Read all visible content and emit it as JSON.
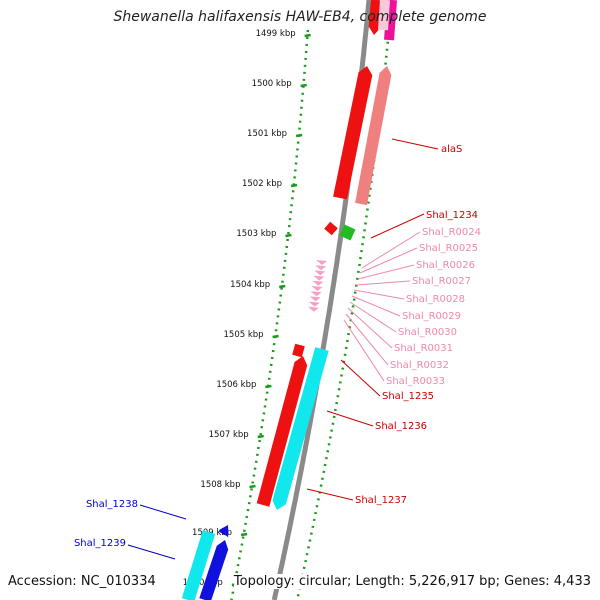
{
  "title": "Shewanella halifaxensis HAW-EB4, complete genome",
  "footer": {
    "accession": "Accession: NC_010334",
    "summary": "Topology: circular; Length: 5,226,917 bp; Genes: 4,433"
  },
  "scale_labels": [
    "1499 kbp",
    "1500 kbp",
    "1501 kbp",
    "1502 kbp",
    "1503 kbp",
    "1504 kbp",
    "1505 kbp",
    "1506 kbp",
    "1507 kbp",
    "1508 kbp",
    "1509 kbp",
    "1510 kbp"
  ],
  "colors": {
    "backbone": "#8a8a8a",
    "scale": "#1a9a1a",
    "cds": "#ee1111",
    "rrna": "#f08080",
    "trna": "#f4a0c8",
    "misc": "#22bb22",
    "cyan": "#11e8ee",
    "blue": "#1111dd",
    "magenta": "#ee1199"
  },
  "gene_labels": [
    {
      "text": "alaS",
      "color": "#cc0000"
    },
    {
      "text": "Shal_1234",
      "color": "#cc0000"
    },
    {
      "text": "Shal_R0024",
      "color": "#ee88aa"
    },
    {
      "text": "Shal_R0025",
      "color": "#ee88aa"
    },
    {
      "text": "Shal_R0026",
      "color": "#ee88aa"
    },
    {
      "text": "Shal_R0027",
      "color": "#ee88aa"
    },
    {
      "text": "Shal_R0028",
      "color": "#ee88aa"
    },
    {
      "text": "Shal_R0029",
      "color": "#ee88aa"
    },
    {
      "text": "Shal_R0030",
      "color": "#ee88aa"
    },
    {
      "text": "Shal_R0031",
      "color": "#ee88aa"
    },
    {
      "text": "Shal_R0032",
      "color": "#ee88aa"
    },
    {
      "text": "Shal_R0033",
      "color": "#ee88aa"
    },
    {
      "text": "Shal_1235",
      "color": "#cc0000"
    },
    {
      "text": "Shal_1236",
      "color": "#cc0000"
    },
    {
      "text": "Shal_1237",
      "color": "#cc0000"
    },
    {
      "text": "Shal_1238",
      "color": "#0000cc"
    },
    {
      "text": "Shal_1239",
      "color": "#0000cc"
    }
  ]
}
